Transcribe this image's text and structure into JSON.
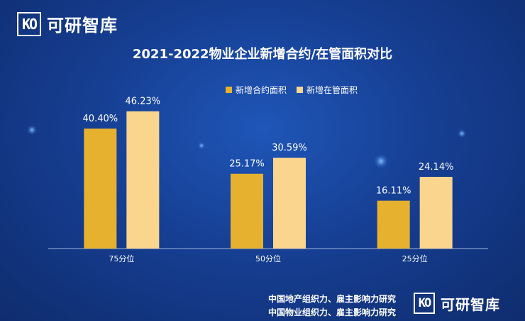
{
  "brand": {
    "logo_mark": "KO",
    "name": "可研智库"
  },
  "source_lines": [
    "中国地产组织力、雇主影响力研究",
    "中国物业组织力、雇主影响力研究"
  ],
  "colors": {
    "series1": "#e5b12f",
    "series2": "#f9d58e",
    "axis": "#9db6e0"
  },
  "chart_data": {
    "type": "bar",
    "title": "2021-2022物业企业新增合约/在管面积对比",
    "categories": [
      "75分位",
      "50分位",
      "25分位"
    ],
    "series": [
      {
        "name": "新增合约面积",
        "values": [
          40.4,
          25.17,
          16.11
        ],
        "labels": [
          "40.40%",
          "25.17%",
          "16.11%"
        ]
      },
      {
        "name": "新增在管面积",
        "values": [
          46.23,
          30.59,
          24.14
        ],
        "labels": [
          "46.23%",
          "30.59%",
          "24.14%"
        ]
      }
    ],
    "ylim": [
      0,
      55
    ],
    "legend_position": "top-center",
    "grid": false
  }
}
